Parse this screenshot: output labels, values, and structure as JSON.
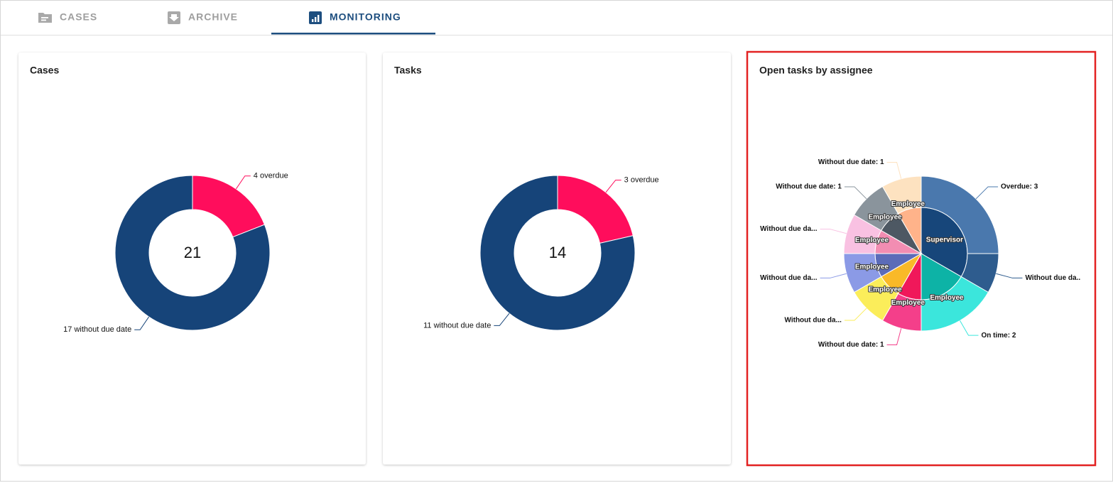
{
  "tabs": [
    {
      "label": "CASES"
    },
    {
      "label": "ARCHIVE"
    },
    {
      "label": "MONITORING",
      "active": true
    }
  ],
  "chart_data": [
    {
      "type": "donut",
      "title": "Cases",
      "total": 21,
      "values": [
        4,
        17
      ],
      "value_labels": [
        "4 overdue",
        "17 without due date"
      ],
      "colors": [
        "#ff0d5c",
        "#164479"
      ]
    },
    {
      "type": "donut",
      "title": "Tasks",
      "total": 14,
      "values": [
        3,
        11
      ],
      "value_labels": [
        "3 overdue",
        "11 without due date"
      ],
      "colors": [
        "#ff0d5c",
        "#164479"
      ]
    },
    {
      "type": "sunburst",
      "title": "Open tasks by assignee",
      "highlighted": true,
      "nodes": [
        {
          "label": "Supervisor",
          "color": "#17467a",
          "children": [
            {
              "value": 3,
              "value_label": "Overdue: 3",
              "color": "#4a78ad"
            },
            {
              "value": 1,
              "value_label": "Without due da..",
              "color": "#2e5c8e"
            }
          ]
        },
        {
          "label": "Employee",
          "color": "#0db3a6",
          "children": [
            {
              "value": 2,
              "value_label": "On time: 2",
              "color": "#3be6dc"
            }
          ]
        },
        {
          "label": "Employee",
          "color": "#f0185a",
          "children": [
            {
              "value": 1,
              "value_label": "Without due date: 1",
              "color": "#f43f8a"
            }
          ]
        },
        {
          "label": "Employee",
          "color": "#f9b928",
          "children": [
            {
              "value": 1,
              "value_label": "Without due da...",
              "color": "#fbed5a"
            }
          ]
        },
        {
          "label": "Employee",
          "color": "#5b6bb8",
          "children": [
            {
              "value": 1,
              "value_label": "Without due da...",
              "color": "#8b9ae6"
            }
          ]
        },
        {
          "label": "Employee",
          "color": "#f28db2",
          "children": [
            {
              "value": 1,
              "value_label": "Without due da...",
              "color": "#f9c1e2"
            }
          ]
        },
        {
          "label": "Employee",
          "color": "#4d5863",
          "children": [
            {
              "value": 1,
              "value_label": "Without due date: 1",
              "color": "#8a949c"
            }
          ]
        },
        {
          "label": "Employee",
          "color": "#ffb38a",
          "children": [
            {
              "value": 1,
              "value_label": "Without due date: 1",
              "color": "#fde2c0"
            }
          ]
        }
      ]
    }
  ]
}
